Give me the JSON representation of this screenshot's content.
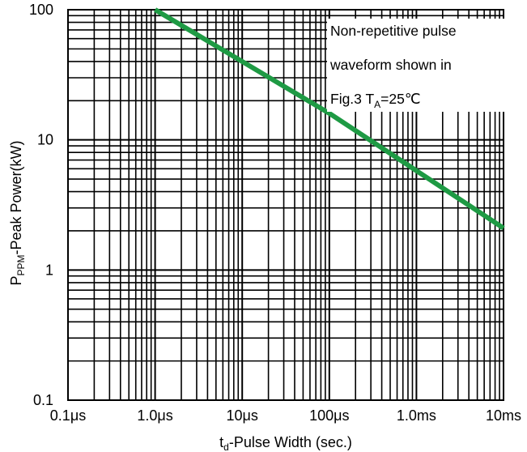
{
  "chart_data": {
    "type": "line",
    "xscale": "log",
    "yscale": "log",
    "x_unit": "seconds",
    "xlim": [
      1e-07,
      0.01
    ],
    "ylim": [
      0.1,
      100
    ],
    "grid": true,
    "x_ticks": [
      {
        "value": 1e-07,
        "label": "0.1μs"
      },
      {
        "value": 1e-06,
        "label": "1.0μs"
      },
      {
        "value": 1e-05,
        "label": "10μs"
      },
      {
        "value": 0.0001,
        "label": "100μs"
      },
      {
        "value": 0.001,
        "label": "1.0ms"
      },
      {
        "value": 0.01,
        "label": "10ms"
      }
    ],
    "y_ticks": [
      {
        "value": 0.1,
        "label": "0.1"
      },
      {
        "value": 1,
        "label": "1"
      },
      {
        "value": 10,
        "label": "10"
      },
      {
        "value": 100,
        "label": "100"
      }
    ],
    "xlabel": {
      "main": "t",
      "sub": "d",
      "rest": "-Pulse Width (sec.)"
    },
    "ylabel": {
      "main": "P",
      "sub": "PPM",
      "rest": "-Peak Power(kW)"
    },
    "annotation": {
      "line1": "Non-repetitive pulse",
      "line2": "waveform shown in",
      "line3_pre": "Fig.3 T",
      "line3_sub": "A",
      "line3_post": "=25℃"
    },
    "series": [
      {
        "color": "#1e9a44",
        "points": [
          [
            1e-06,
            100
          ],
          [
            1e-05,
            40
          ],
          [
            0.0001,
            16
          ],
          [
            0.001,
            5.8
          ],
          [
            0.01,
            2.1
          ]
        ]
      }
    ]
  }
}
